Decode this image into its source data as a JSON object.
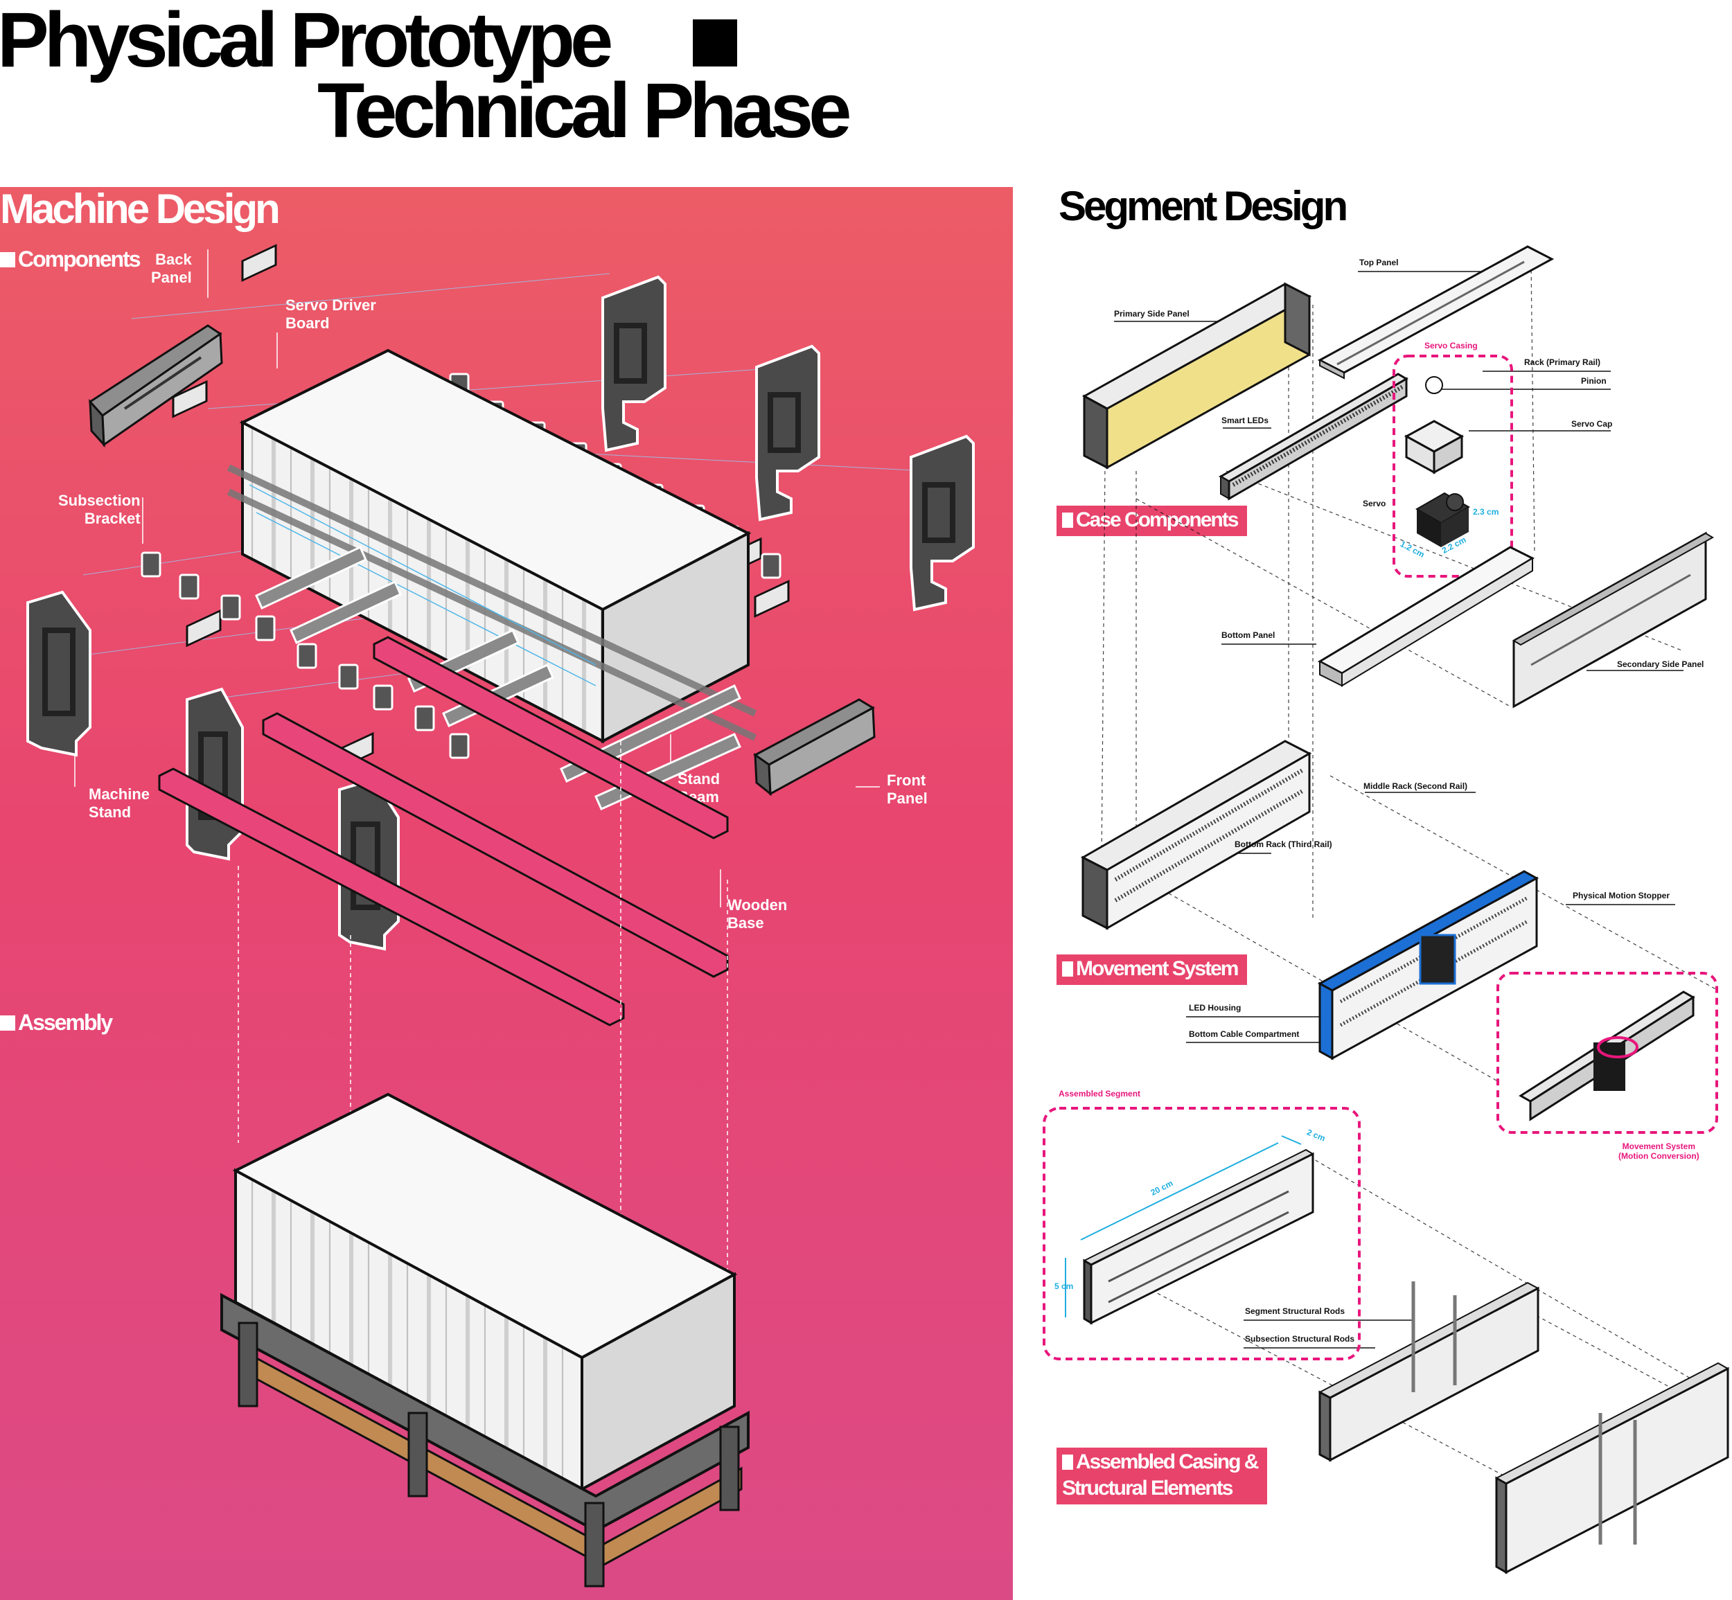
{
  "page": {
    "title_line1": "Physical Prototype",
    "title_line2": "Technical Phase"
  },
  "machine_design": {
    "title": "Machine Design",
    "components_heading": "Components",
    "assembly_heading": "Assembly",
    "labels": {
      "back_panel": "Back\nPanel",
      "servo_driver_board": "Servo Driver\nBoard",
      "subsection_bracket": "Subsection\nBracket",
      "machine_stand": "Machine\nStand",
      "stand_beam": "Stand\nBeam",
      "front_panel": "Front\nPanel",
      "wooden_base": "Wooden\nBase"
    }
  },
  "segment_design": {
    "title": "Segment Design",
    "tags": {
      "case_components": "Case Components",
      "movement_system": "Movement System",
      "assembled": "Assembled Casing &\nStructural Elements"
    },
    "labels": {
      "top_panel": "Top Panel",
      "primary_side_panel": "Primary Side Panel",
      "servo_casing": "Servo Casing",
      "rack_primary_rail": "Rack (Primary Rail)",
      "pinion": "Pinion",
      "smart_leds": "Smart LEDs",
      "servo_cap": "Servo Cap",
      "servo": "Servo",
      "bottom_panel": "Bottom Panel",
      "secondary_side_panel": "Secondary Side Panel",
      "middle_rack": "Middle Rack (Second Rail)",
      "bottom_rack": "Bottom Rack (Third Rail)",
      "physical_motion_stopper": "Physical Motion Stopper",
      "led_housing": "LED Housing",
      "bottom_cable_compartment": "Bottom Cable Compartment",
      "assembled_segment": "Assembled Segment",
      "movement_system_motion": "Movement System\n(Motion Conversion)",
      "segment_structural_rods": "Segment Structural Rods",
      "subsection_structural_rods": "Subsection Structural Rods"
    },
    "dimensions": {
      "servo_h": "2.3 cm",
      "servo_w": "1.2 cm",
      "servo_d": "2.2 cm",
      "seg_length": "20 cm",
      "seg_depth": "2 cm",
      "seg_height": "5 cm"
    }
  },
  "colors": {
    "panel_top": "#ec5c67",
    "panel_mid": "#e8466f",
    "panel_bottom": "#dc4a86",
    "tag_pink": "#e8436b",
    "dash_pink": "#e8167c",
    "dim_cyan": "#1eaee0",
    "led_yellow": "#f0e08a",
    "wood": "#c08a52",
    "stopper_blue": "#1c6fd4"
  }
}
